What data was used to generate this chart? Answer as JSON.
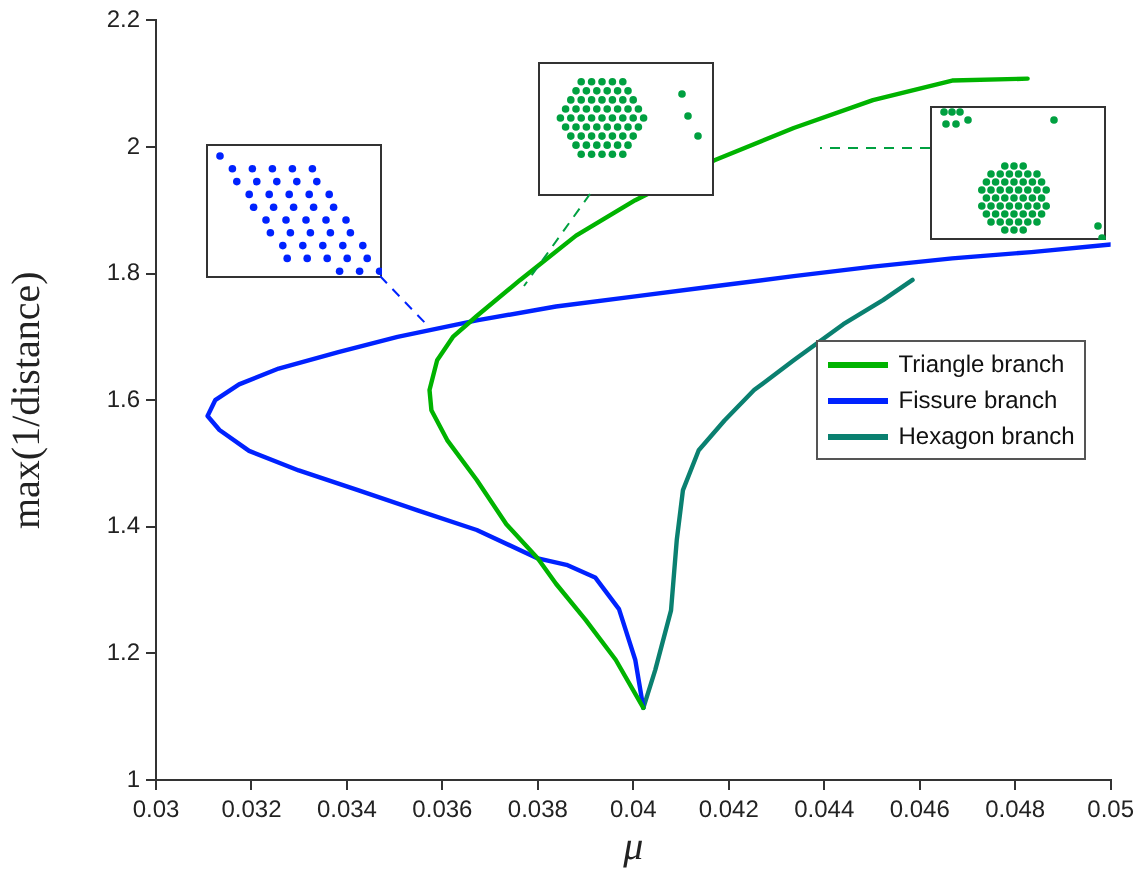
{
  "chart_data": {
    "type": "line",
    "xlabel": "μ",
    "ylabel": "max(1/distance)",
    "xlim": [
      0.03,
      0.05
    ],
    "ylim": [
      1,
      2.2
    ],
    "xticks": [
      0.03,
      0.032,
      0.034,
      0.036,
      0.038,
      0.04,
      0.042,
      0.044,
      0.046,
      0.048,
      0.05
    ],
    "yticks": [
      1,
      1.2,
      1.4,
      1.6,
      1.8,
      2,
      2.2
    ],
    "grid": false,
    "legend": "right",
    "marker": "none",
    "line_style": "solid",
    "series": [
      {
        "name": "Triangle branch",
        "color": "#00b300",
        "x": [
          0.04021,
          0.03963,
          0.039,
          0.03838,
          0.038,
          0.03734,
          0.03672,
          0.0361,
          0.03577,
          0.03573,
          0.03589,
          0.03622,
          0.03672,
          0.03763,
          0.0388,
          0.04004,
          0.0417,
          0.04336,
          0.04502,
          0.04668,
          0.04826
        ],
        "values": [
          1.114,
          1.19,
          1.253,
          1.31,
          1.35,
          1.404,
          1.474,
          1.537,
          1.584,
          1.616,
          1.663,
          1.7,
          1.733,
          1.79,
          1.86,
          1.916,
          1.979,
          2.03,
          2.074,
          2.105,
          2.108
        ]
      },
      {
        "name": "Fissure branch",
        "color": "#0022ff",
        "x": [
          0.04021,
          0.04004,
          0.0397,
          0.0392,
          0.0386,
          0.038,
          0.03672,
          0.03548,
          0.03423,
          0.03299,
          0.03195,
          0.03133,
          0.03108,
          0.03124,
          0.03174,
          0.03257,
          0.03382,
          0.03506,
          0.03672,
          0.03838,
          0.04004,
          0.0417,
          0.04336,
          0.04502,
          0.04668,
          0.04834,
          0.05
        ],
        "values": [
          1.114,
          1.19,
          1.27,
          1.32,
          1.34,
          1.35,
          1.395,
          1.426,
          1.458,
          1.489,
          1.52,
          1.553,
          1.575,
          1.6,
          1.625,
          1.65,
          1.676,
          1.7,
          1.726,
          1.748,
          1.764,
          1.78,
          1.796,
          1.811,
          1.824,
          1.834,
          1.846
        ]
      },
      {
        "name": "Hexagon branch",
        "color": "#0a8070",
        "x": [
          0.04021,
          0.04046,
          0.04079,
          0.04091,
          0.04104,
          0.04137,
          0.04191,
          0.04253,
          0.04336,
          0.0444,
          0.04523,
          0.04585
        ],
        "values": [
          1.114,
          1.174,
          1.268,
          1.379,
          1.458,
          1.521,
          1.568,
          1.616,
          1.663,
          1.72,
          1.758,
          1.79
        ]
      }
    ]
  }
}
